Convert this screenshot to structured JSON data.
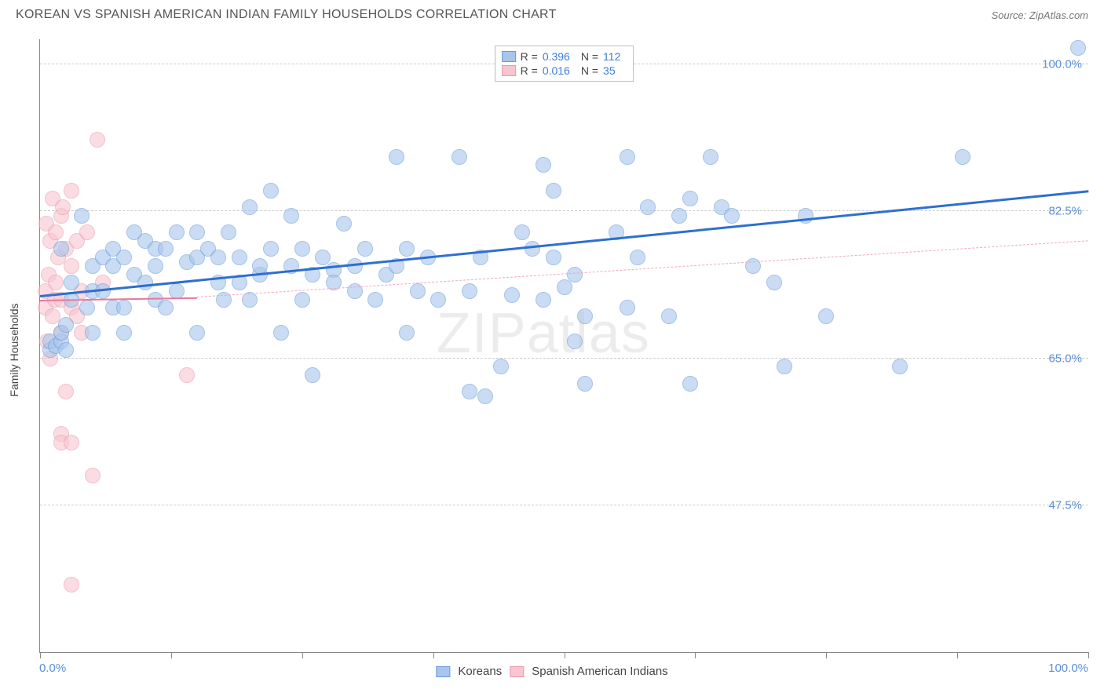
{
  "header": {
    "title": "KOREAN VS SPANISH AMERICAN INDIAN FAMILY HOUSEHOLDS CORRELATION CHART",
    "source": "Source: ZipAtlas.com"
  },
  "watermark": "ZIPatlas",
  "chart": {
    "type": "scatter",
    "y_axis_title": "Family Households",
    "xlim": [
      0,
      100
    ],
    "ylim": [
      30,
      103
    ],
    "x_tick_positions": [
      0,
      12.5,
      25,
      37.5,
      50,
      62.5,
      75,
      87.5,
      100
    ],
    "x_label_min": "0.0%",
    "x_label_max": "100.0%",
    "y_gridlines": [
      47.5,
      65.0,
      82.5,
      100.0
    ],
    "y_tick_labels": [
      "47.5%",
      "65.0%",
      "82.5%",
      "100.0%"
    ],
    "grid_color": "#cccccc",
    "axis_color": "#888888",
    "label_color": "#5b8fd6",
    "text_color": "#444444",
    "series": {
      "koreans": {
        "name": "Koreans",
        "fill": "#a8c6ec",
        "stroke": "#6a9bd8",
        "opacity": 0.6,
        "radius": 10,
        "R": "0.396",
        "N": "112",
        "trend": {
          "x1": 0,
          "y1": 72.5,
          "x2": 100,
          "y2": 85.0,
          "color": "#2e6fd0",
          "width": 3,
          "dashed": false
        },
        "extrapolate": null,
        "points": [
          [
            1,
            66
          ],
          [
            1,
            67
          ],
          [
            1.5,
            66.5
          ],
          [
            2,
            67
          ],
          [
            2,
            68
          ],
          [
            2,
            78
          ],
          [
            2.5,
            66
          ],
          [
            2.5,
            69
          ],
          [
            3,
            72
          ],
          [
            3,
            74
          ],
          [
            4,
            82
          ],
          [
            4.5,
            71
          ],
          [
            5,
            68
          ],
          [
            5,
            73
          ],
          [
            5,
            76
          ],
          [
            6,
            77
          ],
          [
            6,
            73
          ],
          [
            7,
            76
          ],
          [
            7,
            71
          ],
          [
            7,
            78
          ],
          [
            8,
            77
          ],
          [
            8,
            71
          ],
          [
            8,
            68
          ],
          [
            9,
            75
          ],
          [
            9,
            80
          ],
          [
            10,
            79
          ],
          [
            10,
            74
          ],
          [
            11,
            78
          ],
          [
            11,
            72
          ],
          [
            11,
            76
          ],
          [
            12,
            78
          ],
          [
            12,
            71
          ],
          [
            13,
            80
          ],
          [
            13,
            73
          ],
          [
            14,
            76.5
          ],
          [
            15,
            80
          ],
          [
            15,
            77
          ],
          [
            15,
            68
          ],
          [
            16,
            78
          ],
          [
            17,
            77
          ],
          [
            17,
            74
          ],
          [
            17.5,
            72
          ],
          [
            18,
            80
          ],
          [
            19,
            77
          ],
          [
            19,
            74
          ],
          [
            20,
            83
          ],
          [
            20,
            72
          ],
          [
            21,
            75
          ],
          [
            21,
            76
          ],
          [
            22,
            78
          ],
          [
            22,
            85
          ],
          [
            23,
            68
          ],
          [
            24,
            76
          ],
          [
            24,
            82
          ],
          [
            25,
            72
          ],
          [
            25,
            78
          ],
          [
            26,
            75
          ],
          [
            26,
            63
          ],
          [
            27,
            77
          ],
          [
            28,
            75.5
          ],
          [
            28,
            74
          ],
          [
            29,
            81
          ],
          [
            30,
            76
          ],
          [
            30,
            73
          ],
          [
            31,
            78
          ],
          [
            32,
            72
          ],
          [
            33,
            75
          ],
          [
            34,
            89
          ],
          [
            34,
            76
          ],
          [
            35,
            78
          ],
          [
            35,
            68
          ],
          [
            36,
            73
          ],
          [
            37,
            77
          ],
          [
            38,
            72
          ],
          [
            40,
            89
          ],
          [
            41,
            73
          ],
          [
            41,
            61
          ],
          [
            42,
            77
          ],
          [
            42.5,
            60.5
          ],
          [
            44,
            64
          ],
          [
            45,
            72.5
          ],
          [
            46,
            80
          ],
          [
            47,
            78
          ],
          [
            48,
            88
          ],
          [
            48,
            72
          ],
          [
            49,
            85
          ],
          [
            49,
            77
          ],
          [
            50,
            73.5
          ],
          [
            51,
            67
          ],
          [
            51,
            75
          ],
          [
            52,
            62
          ],
          [
            52,
            70
          ],
          [
            55,
            80
          ],
          [
            56,
            89
          ],
          [
            56,
            71
          ],
          [
            57,
            77
          ],
          [
            58,
            83
          ],
          [
            60,
            70
          ],
          [
            61,
            82
          ],
          [
            62,
            62
          ],
          [
            62,
            84
          ],
          [
            64,
            89
          ],
          [
            65,
            83
          ],
          [
            66,
            82
          ],
          [
            68,
            76
          ],
          [
            70,
            74
          ],
          [
            71,
            64
          ],
          [
            73,
            82
          ],
          [
            75,
            70
          ],
          [
            82,
            64
          ],
          [
            88,
            89
          ],
          [
            99,
            102
          ]
        ]
      },
      "spanish": {
        "name": "Spanish American Indians",
        "fill": "#f7c6d0",
        "stroke": "#e99ab0",
        "opacity": 0.6,
        "radius": 10,
        "R": "0.016",
        "N": "35",
        "trend": {
          "x1": 0,
          "y1": 72.0,
          "x2": 15,
          "y2": 72.3,
          "color": "#e77a9a",
          "width": 2,
          "dashed": false
        },
        "extrapolate": {
          "x1": 15,
          "y1": 72.3,
          "x2": 100,
          "y2": 79.0,
          "color": "#f0a8bc",
          "width": 1,
          "dashed": true
        },
        "points": [
          [
            0.5,
            71
          ],
          [
            0.5,
            73
          ],
          [
            0.6,
            81
          ],
          [
            0.7,
            67
          ],
          [
            0.8,
            75
          ],
          [
            1,
            79
          ],
          [
            1,
            65
          ],
          [
            1.2,
            70
          ],
          [
            1.2,
            84
          ],
          [
            1.4,
            72
          ],
          [
            1.5,
            80
          ],
          [
            1.5,
            74
          ],
          [
            1.7,
            77
          ],
          [
            2,
            82
          ],
          [
            2,
            68
          ],
          [
            2,
            72
          ],
          [
            2,
            56
          ],
          [
            2.2,
            83
          ],
          [
            2.5,
            78
          ],
          [
            2.5,
            61
          ],
          [
            3,
            76
          ],
          [
            3,
            71
          ],
          [
            3,
            85
          ],
          [
            3.5,
            70
          ],
          [
            3.5,
            79
          ],
          [
            4,
            73
          ],
          [
            4,
            68
          ],
          [
            4.5,
            80
          ],
          [
            5.5,
            91
          ],
          [
            6,
            74
          ],
          [
            2,
            55
          ],
          [
            3,
            55
          ],
          [
            3,
            38
          ],
          [
            5,
            51
          ],
          [
            14,
            63
          ]
        ]
      }
    }
  },
  "legend_bottom": {
    "koreans": "Koreans",
    "spanish": "Spanish American Indians"
  }
}
